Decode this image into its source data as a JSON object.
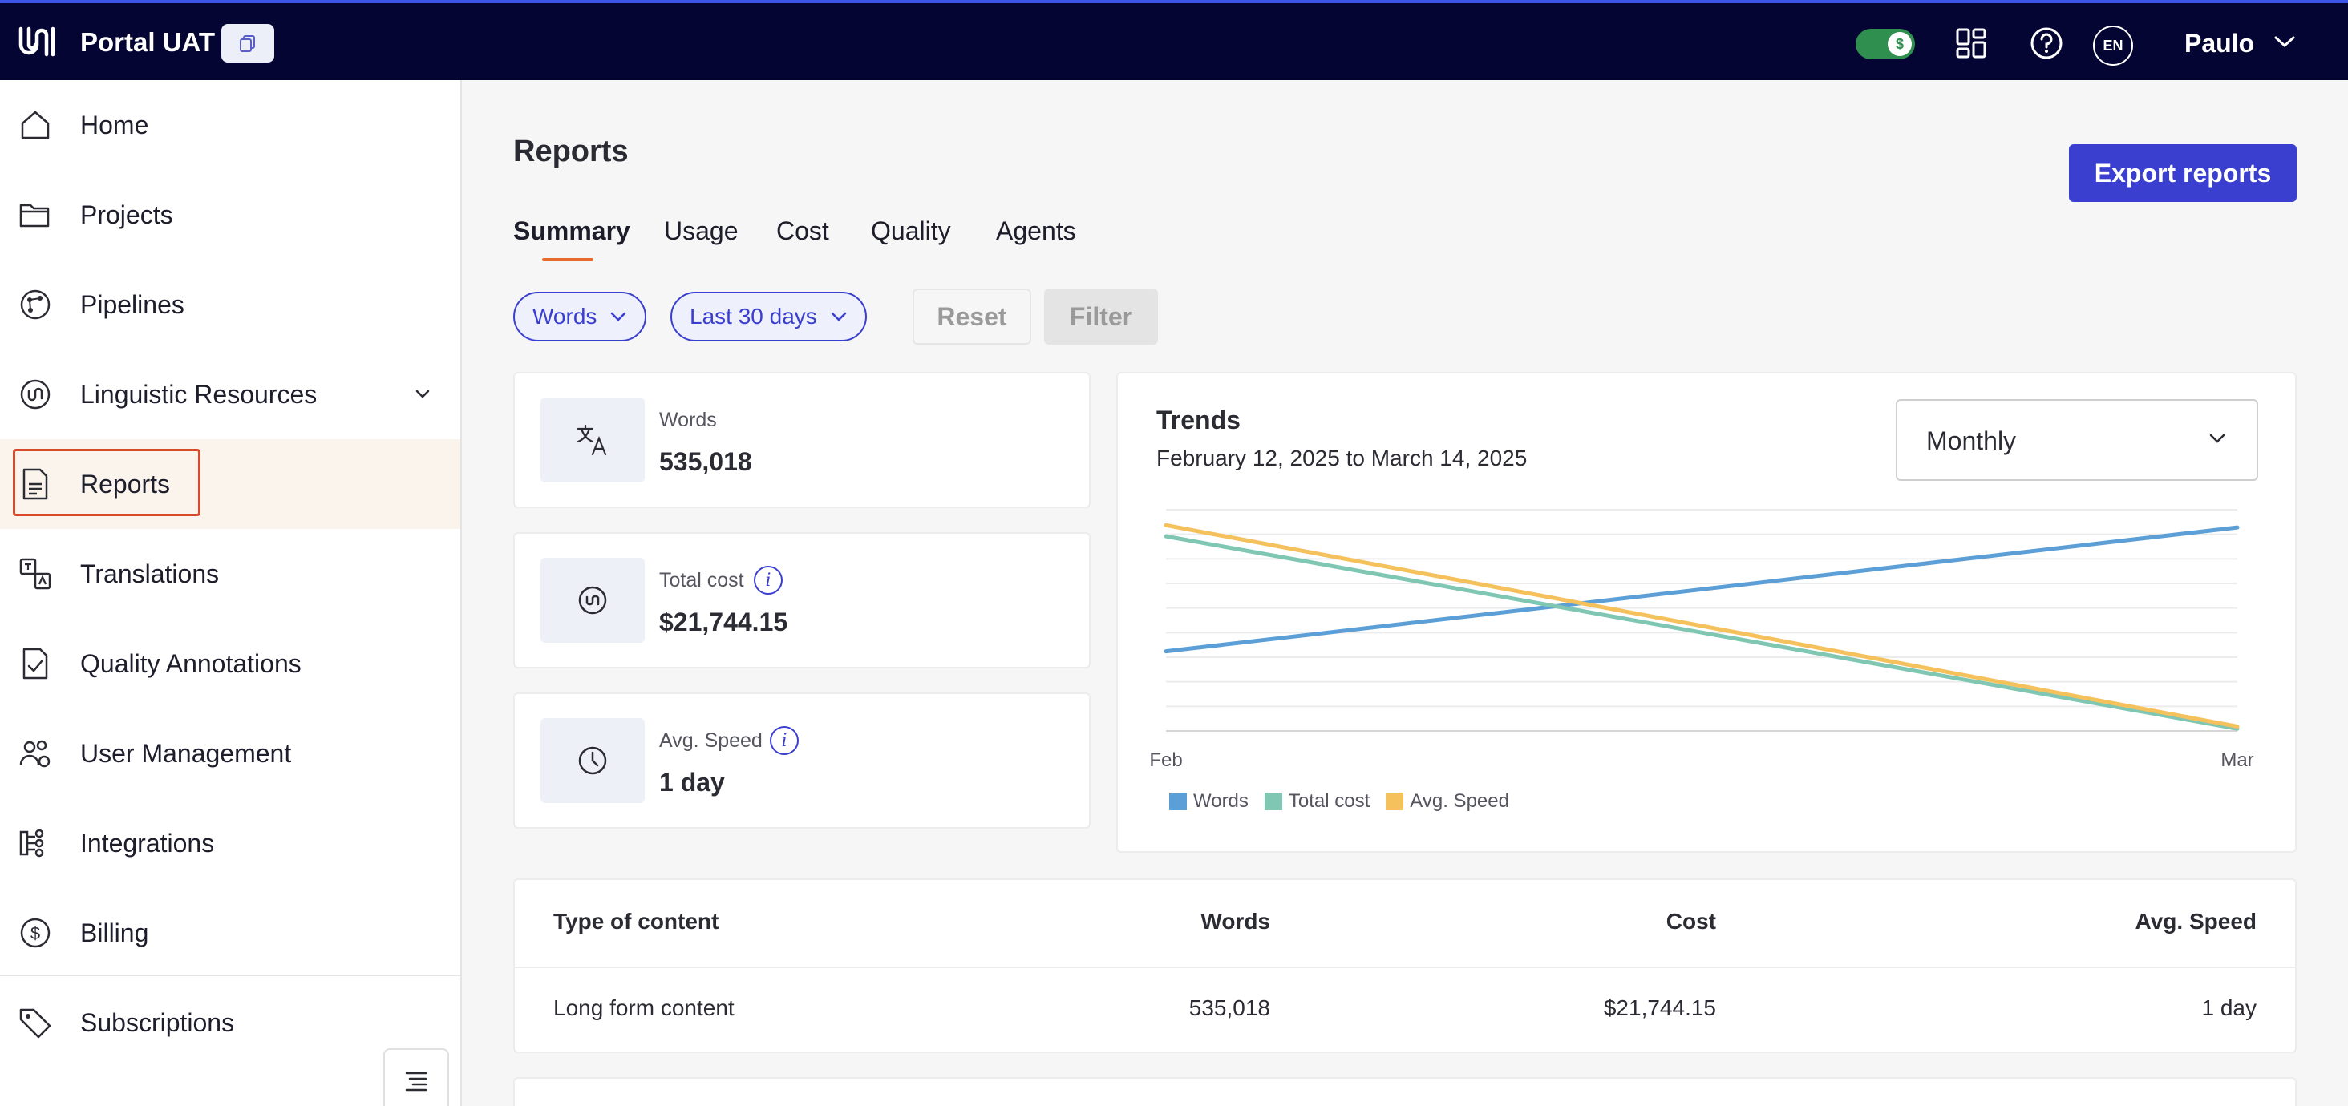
{
  "app": {
    "title": "Portal UAT",
    "user_name": "Paulo",
    "language": "EN"
  },
  "sidebar": {
    "items": [
      {
        "label": "Home",
        "icon": "home-icon"
      },
      {
        "label": "Projects",
        "icon": "folder-icon"
      },
      {
        "label": "Pipelines",
        "icon": "pipeline-icon"
      },
      {
        "label": "Linguistic Resources",
        "icon": "linguistic-resources-icon"
      },
      {
        "label": "Reports",
        "icon": "report-icon"
      },
      {
        "label": "Translations",
        "icon": "translations-icon"
      },
      {
        "label": "Quality Annotations",
        "icon": "quality-check-icon"
      },
      {
        "label": "User Management",
        "icon": "users-icon"
      },
      {
        "label": "Integrations",
        "icon": "integrations-icon"
      },
      {
        "label": "Billing",
        "icon": "dollar-icon"
      },
      {
        "label": "Subscriptions",
        "icon": "tag-icon"
      }
    ],
    "active": "Reports"
  },
  "page": {
    "title": "Reports",
    "export_label": "Export reports"
  },
  "tabs": [
    "Summary",
    "Usage",
    "Cost",
    "Quality",
    "Agents"
  ],
  "filters": {
    "metric": "Words",
    "range": "Last 30 days",
    "reset_label": "Reset",
    "filter_label": "Filter"
  },
  "stats": [
    {
      "label": "Words",
      "value": "535,018",
      "icon": "translate-icon"
    },
    {
      "label": "Total cost",
      "value": "$21,744.15",
      "icon": "cost-icon"
    },
    {
      "label": "Avg. Speed",
      "value": "1 day",
      "icon": "clock-icon"
    }
  ],
  "trends": {
    "title": "Trends",
    "range": "February 12, 2025 to March 14, 2025",
    "period": "Monthly"
  },
  "chart_data": {
    "type": "line",
    "x": [
      "Feb",
      "Mar"
    ],
    "series": [
      {
        "name": "Words",
        "values": [
          0.36,
          0.92
        ],
        "color": "#5b9fd6"
      },
      {
        "name": "Total cost",
        "values": [
          0.88,
          0.01
        ],
        "color": "#7fc7b2"
      },
      {
        "name": "Avg. Speed",
        "values": [
          0.93,
          0.02
        ],
        "color": "#f5c15d"
      }
    ],
    "ylim": [
      0,
      1
    ],
    "grid": true,
    "legend": "bottom-left"
  },
  "table": {
    "headers": [
      "Type of content",
      "Words",
      "Cost",
      "Avg. Speed"
    ],
    "rows": [
      [
        "Long form content",
        "535,018",
        "$21,744.15",
        "1 day"
      ]
    ]
  }
}
